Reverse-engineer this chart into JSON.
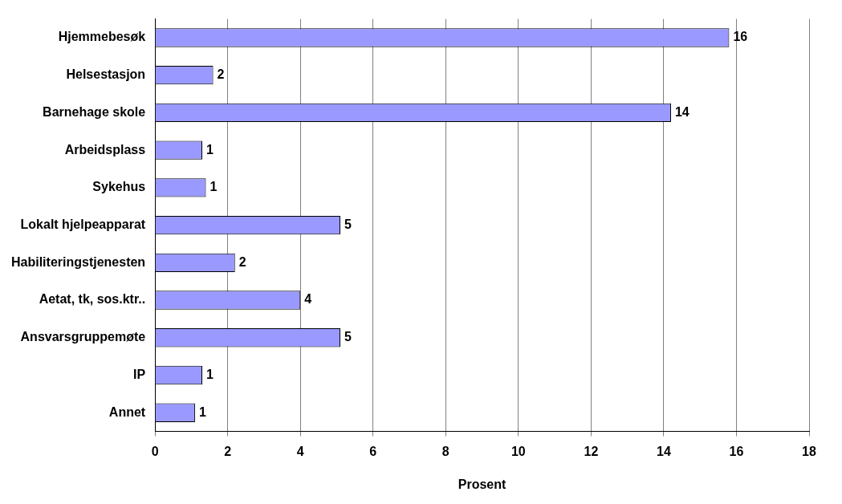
{
  "chart_data": {
    "type": "bar",
    "orientation": "horizontal",
    "xlabel": "Prosent",
    "categories": [
      "Hjemmebesøk",
      "Helsestasjon",
      "Barnehage skole",
      "Arbeidsplass",
      "Sykehus",
      "Lokalt hjelpeapparat",
      "Habiliteringstjenesten",
      "Aetat, tk, sos.ktr..",
      "Ansvarsgruppemøte",
      "IP",
      "Annet"
    ],
    "values": [
      15.8,
      1.6,
      14.2,
      1.3,
      1.4,
      5.1,
      2.2,
      4.0,
      5.1,
      1.3,
      1.1
    ],
    "value_labels": [
      "16",
      "2",
      "14",
      "1",
      "1",
      "5",
      "2",
      "4",
      "5",
      "1",
      "1"
    ],
    "color": "#9999ff",
    "xlim": [
      0,
      18
    ],
    "xticks": [
      0,
      2,
      4,
      6,
      8,
      10,
      12,
      14,
      16,
      18
    ],
    "grid": "x",
    "legend": false
  }
}
